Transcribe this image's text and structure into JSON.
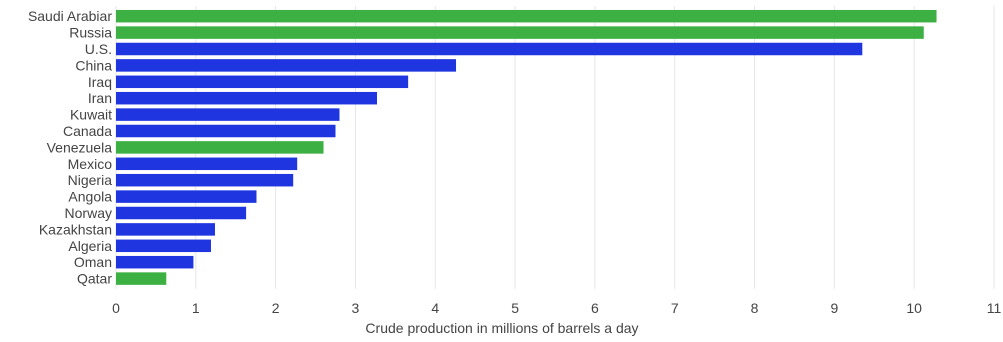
{
  "chart_data": {
    "type": "bar",
    "orientation": "horizontal",
    "categories": [
      "Saudi Arabiar",
      "Russia",
      "U.S.",
      "China",
      "Iraq",
      "Iran",
      "Kuwait",
      "Canada",
      "Venezuela",
      "Mexico",
      "Nigeria",
      "Angola",
      "Norway",
      "Kazakhstan",
      "Algeria",
      "Oman",
      "Qatar"
    ],
    "values": [
      10.28,
      10.12,
      9.35,
      4.26,
      3.66,
      3.27,
      2.8,
      2.75,
      2.6,
      2.27,
      2.22,
      1.76,
      1.63,
      1.24,
      1.19,
      0.97,
      0.63
    ],
    "bar_colors": [
      "#3cb043",
      "#3cb043",
      "#1f35e0",
      "#1f35e0",
      "#1f35e0",
      "#1f35e0",
      "#1f35e0",
      "#1f35e0",
      "#3cb043",
      "#1f35e0",
      "#1f35e0",
      "#1f35e0",
      "#1f35e0",
      "#1f35e0",
      "#1f35e0",
      "#1f35e0",
      "#3cb043"
    ],
    "title": "",
    "xlabel": "Crude production in millions of barrels a day",
    "ylabel": "",
    "xlim": [
      0,
      11
    ],
    "xticks": [
      "0",
      "1",
      "2",
      "3",
      "4",
      "5",
      "6",
      "7",
      "8",
      "9",
      "10",
      "11"
    ],
    "grid": true,
    "legend": "none"
  },
  "colors": {
    "green": "#3cb043",
    "blue": "#1f35e0",
    "grid": "#e6e6e6",
    "text": "#444444"
  }
}
